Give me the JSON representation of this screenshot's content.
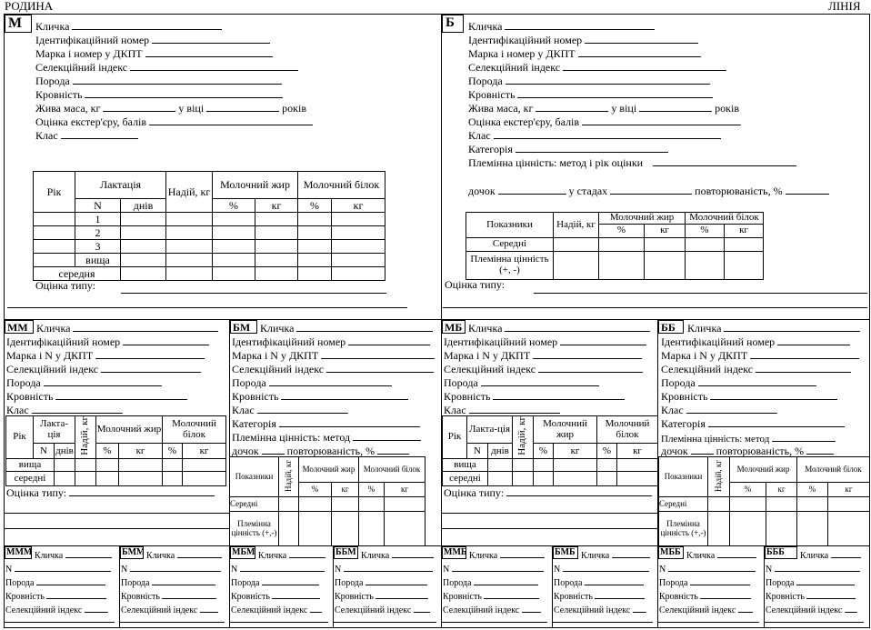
{
  "header": {
    "left": "РОДИНА",
    "right": "ЛІНІЯ"
  },
  "m": {
    "code": "М",
    "fields": [
      "Кличка",
      "Ідентифікаційний номер",
      "Марка і номер у ДКПТ",
      "Селекційний індекс",
      "Порода",
      "Кровність"
    ],
    "weight_label": "Жива маса, кг",
    "at_age": "у віці",
    "years": "років",
    "exterior": "Оцінка екстер'єру, балів",
    "class": "Клас",
    "table": {
      "year": "Рік",
      "lactation": "Лактація",
      "n": "N",
      "days": "днів",
      "yield": "Надій, кг",
      "fat": "Молочний жир",
      "protein": "Молочний білок",
      "pct": "%",
      "kg": "кг",
      "rows": [
        "1",
        "2",
        "3",
        "вища",
        "середня"
      ]
    },
    "type_score": "Оцінка типу:"
  },
  "b": {
    "code": "Б",
    "fields": [
      "Кличка",
      "Ідентифікаційний номер",
      "Марка і номер у ДКПТ",
      "Селекційний індекс",
      "Порода",
      "Кровність"
    ],
    "weight_label": "Жива маса, кг",
    "at_age": "у віці",
    "years": "років",
    "exterior": "Оцінка екстер'єру, балів",
    "class": "Клас",
    "category": "Категорія",
    "breeding_value": "Племінна цінність: метод і рік оцінки",
    "daughters": "дочок",
    "in_herds": "у стадах",
    "repeatability": "повторюваність, %",
    "table": {
      "indicators": "Показники",
      "yield": "Надій, кг",
      "fat": "Молочний жир",
      "protein": "Молочний білок",
      "pct": "%",
      "kg": "кг",
      "rows": [
        "Середні",
        "Племінна цінність (+, -)"
      ]
    },
    "type_score": "Оцінка типу:"
  },
  "mid": {
    "fields": [
      "Ідентифікаційний номер",
      "Марка і N у ДКПТ",
      "Селекційний індекс",
      "Порода",
      "Кровність",
      "Клас"
    ],
    "name": "Кличка",
    "female_codes": [
      "ММ",
      "МБ"
    ],
    "male_codes": [
      "БМ",
      "ББ"
    ],
    "category": "Категорія",
    "breeding_method": "Племінна цінність: метод",
    "daughters": "дочок",
    "repeatability": "повторюваність, %",
    "ltable": {
      "year": "Рік",
      "lactation": "Лакта-ція",
      "yield": "Надій, кг",
      "fat": "Молочний жир",
      "protein": "Молочний білок",
      "n": "N",
      "days": "днів",
      "pct": "%",
      "kg": "кг",
      "r1": "вища",
      "r2": "середні"
    },
    "btable": {
      "indicators": "Показники",
      "yield": "Надій, кг",
      "fat": "Молочний жир",
      "protein": "Молочний білок",
      "pct": "%",
      "kg": "кг",
      "r1": "Середні",
      "r2": "Племінна цінність (+,-)"
    },
    "type_score": "Оцінка типу:"
  },
  "bottom": {
    "codes": [
      "МММ",
      "БММ",
      "МБМ",
      "ББМ",
      "ММБ",
      "БМБ",
      "МББ",
      "БББ"
    ],
    "name": "Кличка",
    "fields": [
      "N",
      "Порода",
      "Кровність",
      "Селекційний індекс"
    ]
  }
}
